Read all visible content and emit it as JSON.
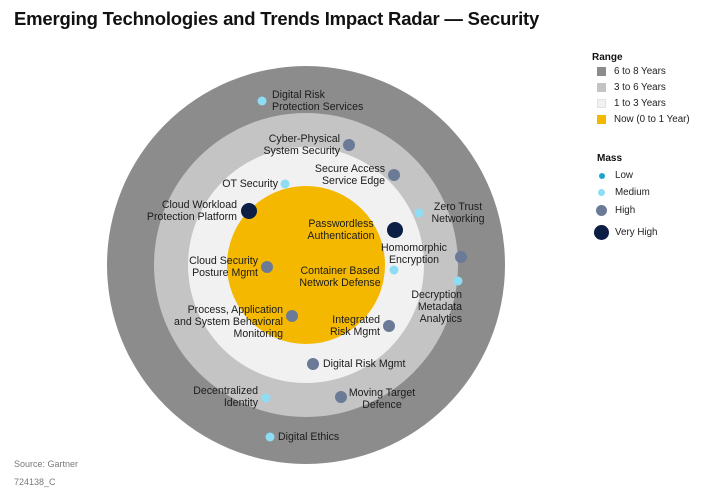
{
  "title": "Emerging Technologies and Trends Impact Radar — Security",
  "legend": {
    "range_title": "Range",
    "ranges": [
      {
        "label": "6 to 8 Years",
        "color": "#8c8c8c"
      },
      {
        "label": "3 to 6 Years",
        "color": "#c4c4c4"
      },
      {
        "label": "1 to 3 Years",
        "color": "#f1f1f1"
      },
      {
        "label": "Now (0 to 1 Year)",
        "color": "#f5b800"
      }
    ],
    "mass_title": "Mass",
    "masses": [
      {
        "label": "Low",
        "color": "#1ea2d6"
      },
      {
        "label": "Medium",
        "color": "#8fdcf5"
      },
      {
        "label": "High",
        "color": "#6b7a96"
      },
      {
        "label": "Very High",
        "color": "#0d1e44"
      }
    ]
  },
  "technologies": [
    {
      "name": "Digital Risk Protection Services",
      "range": "6 to 8 Years",
      "mass": "Medium"
    },
    {
      "name": "Cyber-Physical System Security",
      "range": "3 to 6 Years",
      "mass": "High"
    },
    {
      "name": "OT Security",
      "range": "3 to 6 Years",
      "mass": "Medium"
    },
    {
      "name": "Secure Access Service Edge",
      "range": "1 to 3 Years",
      "mass": "High"
    },
    {
      "name": "Zero Trust Networking",
      "range": "3 to 6 Years",
      "mass": "Medium"
    },
    {
      "name": "Cloud Workload Protection Platform",
      "range": "Now (0 to 1 Year)",
      "mass": "Very High"
    },
    {
      "name": "Passwordless Authentication",
      "range": "Now (0 to 1 Year)",
      "mass": "Very High"
    },
    {
      "name": "Homomorphic Encryption",
      "range": "3 to 6 Years",
      "mass": "High"
    },
    {
      "name": "Cloud Security Posture Mgmt",
      "range": "Now (0 to 1 Year)",
      "mass": "High"
    },
    {
      "name": "Container Based Network Defense",
      "range": "1 to 3 Years",
      "mass": "Medium"
    },
    {
      "name": "Decryption Metadata Analytics",
      "range": "3 to 6 Years",
      "mass": "Medium"
    },
    {
      "name": "Process, Application and System Behavioral Monitoring",
      "range": "1 to 3 Years",
      "mass": "High"
    },
    {
      "name": "Integrated Risk Mgmt",
      "range": "1 to 3 Years",
      "mass": "High"
    },
    {
      "name": "Digital Risk Mgmt",
      "range": "3 to 6 Years",
      "mass": "High"
    },
    {
      "name": "Decentralized Identity",
      "range": "6 to 8 Years",
      "mass": "Medium"
    },
    {
      "name": "Moving Target Defence",
      "range": "6 to 8 Years",
      "mass": "High"
    },
    {
      "name": "Digital Ethics",
      "range": "6 to 8 Years",
      "mass": "Medium"
    }
  ],
  "labels": {
    "digital_risk_protection": [
      "Digital Risk",
      "Protection Services"
    ],
    "cyber_physical": [
      "Cyber-Physical",
      "System Security"
    ],
    "ot_security": [
      "OT Security"
    ],
    "secure_access": [
      "Secure Access",
      "Service Edge"
    ],
    "zero_trust": [
      "Zero Trust",
      "Networking"
    ],
    "cloud_workload": [
      "Cloud Workload",
      "Protection Platform"
    ],
    "passwordless": [
      "Passwordless",
      "Authentication"
    ],
    "homomorphic": [
      "Homomorphic",
      "Encryption"
    ],
    "cloud_security_posture": [
      "Cloud Security",
      "Posture Mgmt"
    ],
    "container_based": [
      "Container Based",
      "Network Defense"
    ],
    "decryption": [
      "Decryption",
      "Metadata",
      "Analytics"
    ],
    "process_app": [
      "Process, Application",
      "and System Behavioral",
      "Monitoring"
    ],
    "integrated_risk": [
      "Integrated",
      "Risk Mgmt"
    ],
    "digital_risk_mgmt": [
      "Digital Risk Mgmt"
    ],
    "decentralized": [
      "Decentralized",
      "Identity"
    ],
    "moving_target": [
      "Moving Target",
      "Defence"
    ],
    "digital_ethics": [
      "Digital Ethics"
    ]
  },
  "footer": {
    "source": "Source: Gartner",
    "id": "724138_C"
  }
}
